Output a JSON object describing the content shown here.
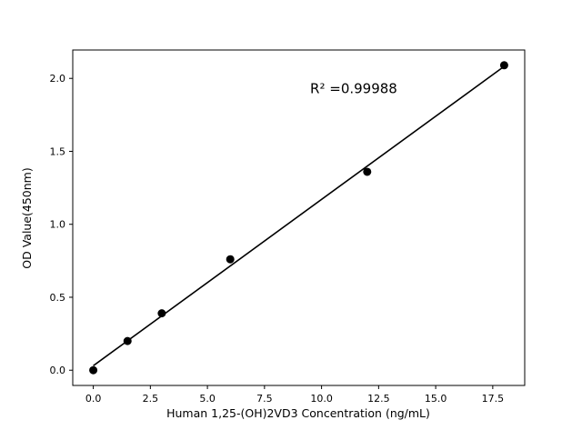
{
  "chart_data": {
    "type": "scatter",
    "x": [
      0,
      1.5,
      3,
      6,
      12,
      18
    ],
    "y": [
      0.0,
      0.2,
      0.39,
      0.76,
      1.36,
      2.09
    ],
    "fit_line": true,
    "annotation": {
      "text": "R² =0.99988",
      "x": 9.5,
      "y": 1.9
    },
    "xlabel": "Human 1,25-(OH)2VD3 Concentration (ng/mL)",
    "ylabel": "OD Value(450nm)",
    "x_ticks": [
      0.0,
      2.5,
      5.0,
      7.5,
      10.0,
      12.5,
      15.0,
      17.5
    ],
    "y_ticks": [
      0.0,
      0.5,
      1.0,
      1.5,
      2.0
    ],
    "xlim": [
      -0.9,
      18.9
    ],
    "ylim": [
      -0.1045,
      2.1945
    ],
    "grid": false,
    "legend": null,
    "marker_color": "#000000",
    "line_color": "#000000",
    "background": "#ffffff"
  }
}
